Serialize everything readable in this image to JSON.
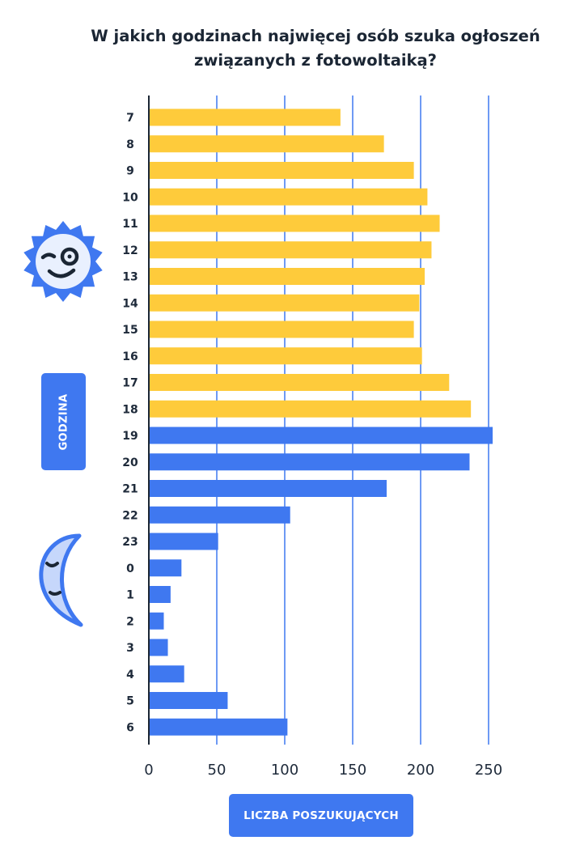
{
  "title_lines": [
    "W jakich godzinach najwięcej osób szuka ogłoszeń",
    "związanych z fotowoltaiką?"
  ],
  "ylabel": "GODZINA",
  "xlabel": "LICZBA POSZUKUJĄCYCH",
  "icons": {
    "sun": "winking-sun-icon",
    "moon": "sleeping-moon-icon"
  },
  "colors": {
    "day": "#fecb3b",
    "night": "#3f78f0",
    "grid": "#3f78f0",
    "text": "#1e2a3a"
  },
  "chart_data": {
    "type": "bar",
    "orientation": "horizontal",
    "title": "W jakich godzinach najwięcej osób szuka ogłoszeń związanych z fotowoltaiką?",
    "xlabel": "LICZBA POSZUKUJĄCYCH",
    "ylabel": "GODZINA",
    "xlim": [
      0,
      250
    ],
    "xticks": [
      0,
      50,
      100,
      150,
      200,
      250
    ],
    "grid": true,
    "categories": [
      "7",
      "8",
      "9",
      "10",
      "11",
      "12",
      "13",
      "14",
      "15",
      "16",
      "17",
      "18",
      "19",
      "20",
      "21",
      "22",
      "23",
      "0",
      "1",
      "2",
      "3",
      "4",
      "5",
      "6"
    ],
    "values": [
      141,
      173,
      195,
      205,
      214,
      208,
      203,
      199,
      195,
      201,
      221,
      237,
      253,
      236,
      175,
      104,
      51,
      24,
      16,
      11,
      14,
      26,
      58,
      102
    ],
    "color_groups": [
      "day",
      "day",
      "day",
      "day",
      "day",
      "day",
      "day",
      "day",
      "day",
      "day",
      "day",
      "day",
      "night",
      "night",
      "night",
      "night",
      "night",
      "night",
      "night",
      "night",
      "night",
      "night",
      "night",
      "night"
    ]
  }
}
